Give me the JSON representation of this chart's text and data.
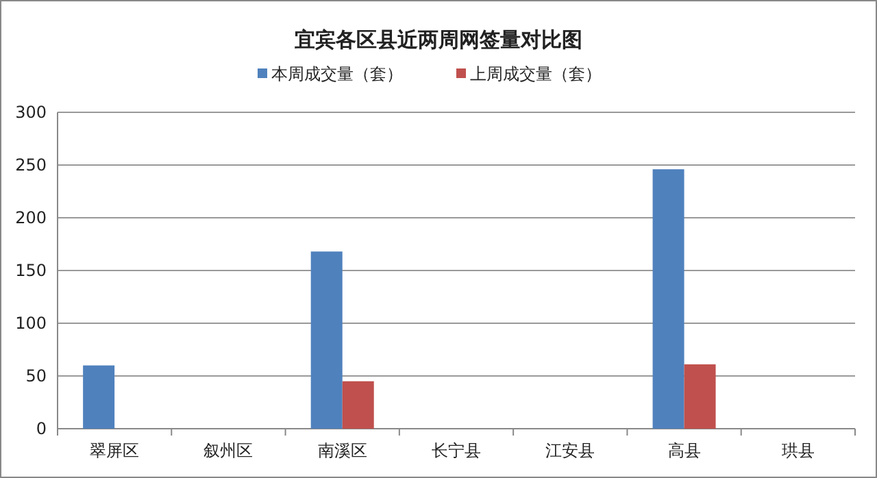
{
  "chart_data": {
    "type": "bar",
    "title": "宜宾各区县近两周网签量对比图",
    "categories": [
      "翠屏区",
      "叙州区",
      "南溪区",
      "长宁县",
      "江安县",
      "高县",
      "珙县"
    ],
    "series": [
      {
        "name": "本周成交量（套）",
        "color": "#4f81bd",
        "values": [
          60,
          0,
          168,
          0,
          0,
          246,
          0
        ]
      },
      {
        "name": "上周成交量（套）",
        "color": "#c0504d",
        "values": [
          0,
          0,
          45,
          0,
          0,
          61,
          0
        ]
      }
    ],
    "ylim": [
      0,
      300
    ],
    "yticks": [
      0,
      50,
      100,
      150,
      200,
      250,
      300
    ],
    "grid": "y",
    "legend": "top"
  }
}
